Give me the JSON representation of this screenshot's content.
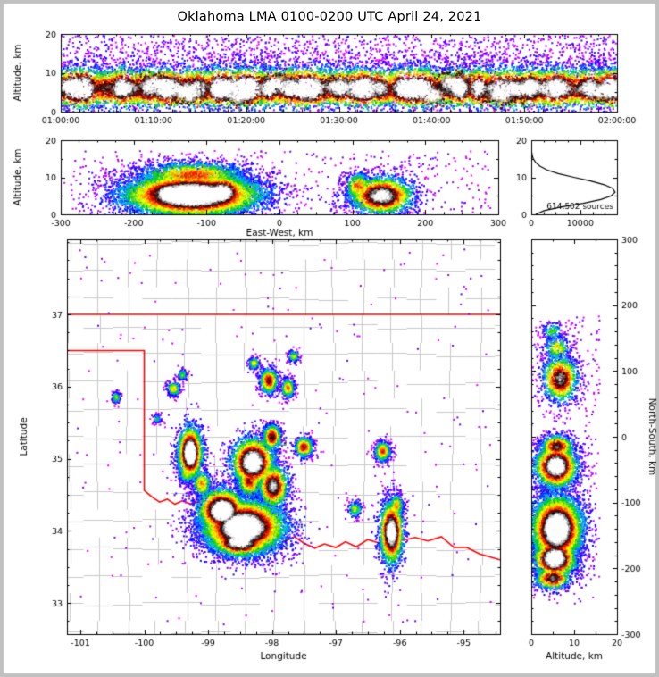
{
  "title": "Oklahoma LMA 0100-0200 UTC April 24, 2021",
  "colors": {
    "background": "#ffffff",
    "outer_frame": "#c0c0c0",
    "axis": "#000000",
    "state_border": "#ff0000",
    "county_lines": "#c9c9c9",
    "station_marker": "#2db52d",
    "density_ramp": [
      "#ff00ff",
      "#b300ff",
      "#5500ff",
      "#0000ff",
      "#0088ff",
      "#00cccc",
      "#00cc00",
      "#aaee00",
      "#ffff00",
      "#ff9900",
      "#ff2200",
      "#880000",
      "#111111",
      "#aaaaaa",
      "#ffffff"
    ]
  },
  "chart_data": [
    {
      "id": "time_height",
      "type": "heatmap",
      "xlabel": "",
      "ylabel": "Altitude, km",
      "xlim": [
        0,
        3600
      ],
      "ylim": [
        0,
        20
      ],
      "xticks": {
        "values": [
          0,
          600,
          1200,
          1800,
          2400,
          3000,
          3600
        ],
        "labels": [
          "01:00:00",
          "01:10:00",
          "01:20:00",
          "01:30:00",
          "01:40:00",
          "01:50:00",
          "02:00:00"
        ]
      },
      "yticks": {
        "values": [
          0,
          10,
          20
        ],
        "labels": [
          "0",
          "10",
          "20"
        ]
      },
      "x_minor_step": 120,
      "y_minor_step": 5,
      "band": {
        "n": 15000,
        "alt_mean": 5.4,
        "alt_sigma": 2.1,
        "alt_mean2": 8.8,
        "alt_sigma2": 2.9,
        "mix2": 0.3,
        "cores": 13,
        "core_n": 240,
        "core_sx": 55,
        "core_alt_lo": 4.0,
        "core_alt_hi": 7.5,
        "core_sy": 1.25
      },
      "sparse": {
        "n": 2600,
        "xmin": 0,
        "xmax": 3600,
        "ymin": 0,
        "ymax": 19.5,
        "tmax": 0.2
      }
    },
    {
      "id": "ew_altitude",
      "type": "heatmap",
      "xlabel": "East-West, km",
      "ylabel": "Altitude, km",
      "xlim": [
        -300,
        300
      ],
      "ylim": [
        0,
        20
      ],
      "xticks": {
        "values": [
          -300,
          -200,
          -100,
          0,
          100,
          200,
          300
        ],
        "labels": [
          "-300",
          "-200",
          "-100",
          "0",
          "100",
          "200",
          "300"
        ]
      },
      "yticks": {
        "values": [
          0,
          10,
          20
        ],
        "labels": [
          "0",
          "10",
          "20"
        ]
      },
      "x_minor_step": 25,
      "y_minor_step": 5,
      "clusters": [
        {
          "x": -120,
          "y": 5.2,
          "sx": 50,
          "sy": 3.1,
          "intensity": 1.0,
          "n": 7500
        },
        {
          "x": -152,
          "y": 5.5,
          "sx": 14,
          "sy": 2.3,
          "intensity": 1.0,
          "n": 1400
        },
        {
          "x": -80,
          "y": 5.8,
          "sx": 18,
          "sy": 2.6,
          "intensity": 0.95,
          "n": 1500
        },
        {
          "x": -120,
          "y": 10.5,
          "sx": 45,
          "sy": 2.2,
          "intensity": 0.55,
          "n": 1500
        },
        {
          "x": 140,
          "y": 5.0,
          "sx": 24,
          "sy": 2.8,
          "intensity": 0.82,
          "n": 2100
        },
        {
          "x": 108,
          "y": 7.5,
          "sx": 10,
          "sy": 2.2,
          "intensity": 0.55,
          "n": 400
        }
      ],
      "sparse": {
        "n": 420,
        "xmin": -285,
        "xmax": 290,
        "ymin": 0,
        "ymax": 17,
        "tmax": 0.16
      }
    },
    {
      "id": "altitude_histogram",
      "type": "line",
      "xlabel": "",
      "ylabel": "",
      "xlim": [
        0,
        17500
      ],
      "ylim": [
        0,
        20
      ],
      "xticks": {
        "values": [
          0,
          10000
        ],
        "labels": [
          "0",
          "10000"
        ]
      },
      "yticks": {
        "values": [
          0,
          10,
          20
        ],
        "labels": [
          "0",
          "10",
          "20"
        ]
      },
      "x_minor_step": 2500,
      "y_minor_step": 5,
      "annotation": "614,502 sources",
      "profile_alt": [
        0,
        1,
        2,
        3,
        4,
        5,
        6,
        7,
        8,
        9,
        10,
        11,
        12,
        13,
        14,
        15,
        16,
        17,
        18,
        19,
        20
      ],
      "profile_count": [
        900,
        2600,
        6200,
        10600,
        14200,
        16300,
        17100,
        16600,
        14900,
        12100,
        8700,
        5500,
        3200,
        1750,
        900,
        400,
        170,
        70,
        28,
        10,
        4
      ]
    },
    {
      "id": "plan_view",
      "type": "heatmap",
      "xlabel": "Longitude",
      "ylabel": "Latitude",
      "xlim": [
        -101.21,
        -94.43
      ],
      "ylim": [
        32.57,
        38.04
      ],
      "xticks": {
        "values": [
          -101,
          -100,
          -99,
          -98,
          -97,
          -96,
          -95
        ],
        "labels": [
          "-101",
          "-100",
          "-99",
          "-98",
          "-97",
          "-96",
          "-95"
        ]
      },
      "yticks": {
        "values": [
          33,
          34,
          35,
          36,
          37
        ],
        "labels": [
          "33",
          "34",
          "35",
          "36",
          "37"
        ]
      },
      "x_minor_step": 0.25,
      "y_minor_step": 0.25,
      "county_grid": {
        "lon_start": -101.18,
        "lon_step": 0.46,
        "lat_start": 32.6,
        "lat_step": 0.385,
        "jitter": 0.035,
        "skip": 0.12
      },
      "state_border": {
        "north": [
          [
            -101.21,
            37.0
          ],
          [
            -94.43,
            37.0
          ]
        ],
        "west_and_red_river": [
          [
            -101.21,
            36.5
          ],
          [
            -100.0,
            36.5
          ],
          [
            -100.0,
            34.56
          ],
          [
            -99.88,
            34.47
          ],
          [
            -99.76,
            34.4
          ],
          [
            -99.64,
            34.44
          ],
          [
            -99.52,
            34.37
          ],
          [
            -99.4,
            34.42
          ],
          [
            -99.27,
            34.37
          ],
          [
            -99.13,
            34.41
          ],
          [
            -98.98,
            34.2
          ],
          [
            -98.85,
            34.14
          ],
          [
            -98.7,
            34.16
          ],
          [
            -98.58,
            34.09
          ],
          [
            -98.47,
            34.14
          ],
          [
            -98.33,
            34.11
          ],
          [
            -98.17,
            34.05
          ],
          [
            -98.05,
            33.9
          ],
          [
            -97.94,
            33.96
          ],
          [
            -97.8,
            33.85
          ],
          [
            -97.65,
            33.92
          ],
          [
            -97.5,
            33.83
          ],
          [
            -97.33,
            33.76
          ],
          [
            -97.18,
            33.82
          ],
          [
            -97.0,
            33.77
          ],
          [
            -96.85,
            33.85
          ],
          [
            -96.68,
            33.78
          ],
          [
            -96.5,
            33.88
          ],
          [
            -96.32,
            33.83
          ],
          [
            -96.15,
            33.94
          ],
          [
            -95.95,
            33.87
          ],
          [
            -95.76,
            33.91
          ],
          [
            -95.56,
            33.86
          ],
          [
            -95.35,
            33.92
          ],
          [
            -95.15,
            33.77
          ],
          [
            -94.95,
            33.77
          ],
          [
            -94.75,
            33.68
          ],
          [
            -94.43,
            33.6
          ]
        ]
      },
      "stations": [
        [
          -98.03,
          35.44
        ],
        [
          -97.88,
          35.37
        ],
        [
          -98.1,
          35.32
        ],
        [
          -97.95,
          35.27
        ],
        [
          -98.06,
          35.19
        ],
        [
          -97.82,
          35.22
        ],
        [
          -97.92,
          35.1
        ]
      ],
      "clusters": [
        {
          "x": -98.45,
          "y": 34.05,
          "sx": 0.34,
          "sy": 0.2,
          "intensity": 1.0,
          "n": 6200
        },
        {
          "x": -98.78,
          "y": 34.28,
          "sx": 0.2,
          "sy": 0.16,
          "intensity": 0.97,
          "n": 2300
        },
        {
          "x": -98.5,
          "y": 33.85,
          "sx": 0.24,
          "sy": 0.11,
          "intensity": 0.9,
          "n": 1400
        },
        {
          "x": -97.98,
          "y": 34.62,
          "sx": 0.13,
          "sy": 0.17,
          "intensity": 0.75,
          "n": 1200
        },
        {
          "x": -98.35,
          "y": 34.7,
          "sx": 0.11,
          "sy": 0.14,
          "intensity": 0.6,
          "n": 650
        },
        {
          "x": -98.3,
          "y": 34.95,
          "sx": 0.18,
          "sy": 0.18,
          "intensity": 0.93,
          "n": 2100
        },
        {
          "x": -99.28,
          "y": 35.08,
          "sx": 0.1,
          "sy": 0.19,
          "intensity": 0.97,
          "n": 1900
        },
        {
          "x": -99.1,
          "y": 34.65,
          "sx": 0.09,
          "sy": 0.11,
          "intensity": 0.5,
          "n": 380
        },
        {
          "x": -99.33,
          "y": 34.8,
          "sx": 0.08,
          "sy": 0.08,
          "intensity": 0.45,
          "n": 260
        },
        {
          "x": -98.0,
          "y": 35.3,
          "sx": 0.08,
          "sy": 0.1,
          "intensity": 0.65,
          "n": 600
        },
        {
          "x": -97.5,
          "y": 35.16,
          "sx": 0.08,
          "sy": 0.08,
          "intensity": 0.6,
          "n": 480
        },
        {
          "x": -96.13,
          "y": 33.98,
          "sx": 0.1,
          "sy": 0.24,
          "intensity": 0.88,
          "n": 1700
        },
        {
          "x": -96.05,
          "y": 34.35,
          "sx": 0.06,
          "sy": 0.09,
          "intensity": 0.5,
          "n": 280
        },
        {
          "x": -96.27,
          "y": 35.1,
          "sx": 0.07,
          "sy": 0.08,
          "intensity": 0.55,
          "n": 400
        },
        {
          "x": -98.05,
          "y": 36.08,
          "sx": 0.08,
          "sy": 0.1,
          "intensity": 0.62,
          "n": 560
        },
        {
          "x": -97.75,
          "y": 35.98,
          "sx": 0.06,
          "sy": 0.08,
          "intensity": 0.5,
          "n": 300
        },
        {
          "x": -98.28,
          "y": 36.32,
          "sx": 0.05,
          "sy": 0.05,
          "intensity": 0.42,
          "n": 150
        },
        {
          "x": -97.66,
          "y": 36.42,
          "sx": 0.05,
          "sy": 0.05,
          "intensity": 0.38,
          "n": 110
        },
        {
          "x": -99.54,
          "y": 35.97,
          "sx": 0.06,
          "sy": 0.06,
          "intensity": 0.45,
          "n": 200
        },
        {
          "x": -99.4,
          "y": 36.16,
          "sx": 0.04,
          "sy": 0.05,
          "intensity": 0.35,
          "n": 90
        },
        {
          "x": -100.44,
          "y": 35.85,
          "sx": 0.04,
          "sy": 0.05,
          "intensity": 0.35,
          "n": 110
        },
        {
          "x": -99.8,
          "y": 35.55,
          "sx": 0.04,
          "sy": 0.04,
          "intensity": 0.3,
          "n": 60
        },
        {
          "x": -96.7,
          "y": 34.3,
          "sx": 0.06,
          "sy": 0.07,
          "intensity": 0.4,
          "n": 140
        }
      ],
      "sparse": {
        "n": 240,
        "xmin": -101.1,
        "xmax": -94.55,
        "ymin": 32.7,
        "ymax": 37.9,
        "tmax": 0.15
      }
    },
    {
      "id": "ns_altitude",
      "type": "heatmap",
      "xlabel": "Altitude, km",
      "ylabel": "North-South, km",
      "ylabels_right": true,
      "xlim": [
        0,
        20
      ],
      "ylim": [
        -300,
        300
      ],
      "xticks": {
        "values": [
          0,
          10,
          20
        ],
        "labels": [
          "0",
          "10",
          "20"
        ]
      },
      "yticks": {
        "values": [
          -300,
          -200,
          -100,
          0,
          100,
          200,
          300
        ],
        "labels": [
          "-300",
          "-200",
          "-100",
          "0",
          "100",
          "200",
          "300"
        ]
      },
      "x_minor_step": 5,
      "y_minor_step": 20,
      "clusters": [
        {
          "x": 6,
          "y": -140,
          "sx": 3.1,
          "sy": 26,
          "intensity": 1.0,
          "n": 5200
        },
        {
          "x": 5.5,
          "y": -185,
          "sx": 2.7,
          "sy": 16,
          "intensity": 0.95,
          "n": 1600
        },
        {
          "x": 5,
          "y": -215,
          "sx": 2.4,
          "sy": 10,
          "intensity": 0.7,
          "n": 500
        },
        {
          "x": 5.8,
          "y": -45,
          "sx": 2.7,
          "sy": 18,
          "intensity": 0.9,
          "n": 2000
        },
        {
          "x": 6,
          "y": -15,
          "sx": 2.2,
          "sy": 10,
          "intensity": 0.68,
          "n": 600
        },
        {
          "x": 6.8,
          "y": 88,
          "sx": 2.3,
          "sy": 20,
          "intensity": 0.72,
          "n": 1000
        },
        {
          "x": 6,
          "y": 135,
          "sx": 1.9,
          "sy": 11,
          "intensity": 0.45,
          "n": 260
        },
        {
          "x": 5,
          "y": 160,
          "sx": 1.6,
          "sy": 8,
          "intensity": 0.35,
          "n": 120
        }
      ],
      "sparse": {
        "n": 380,
        "xmin": 0,
        "xmax": 16,
        "ymin": -255,
        "ymax": 185,
        "tmax": 0.15
      }
    }
  ]
}
